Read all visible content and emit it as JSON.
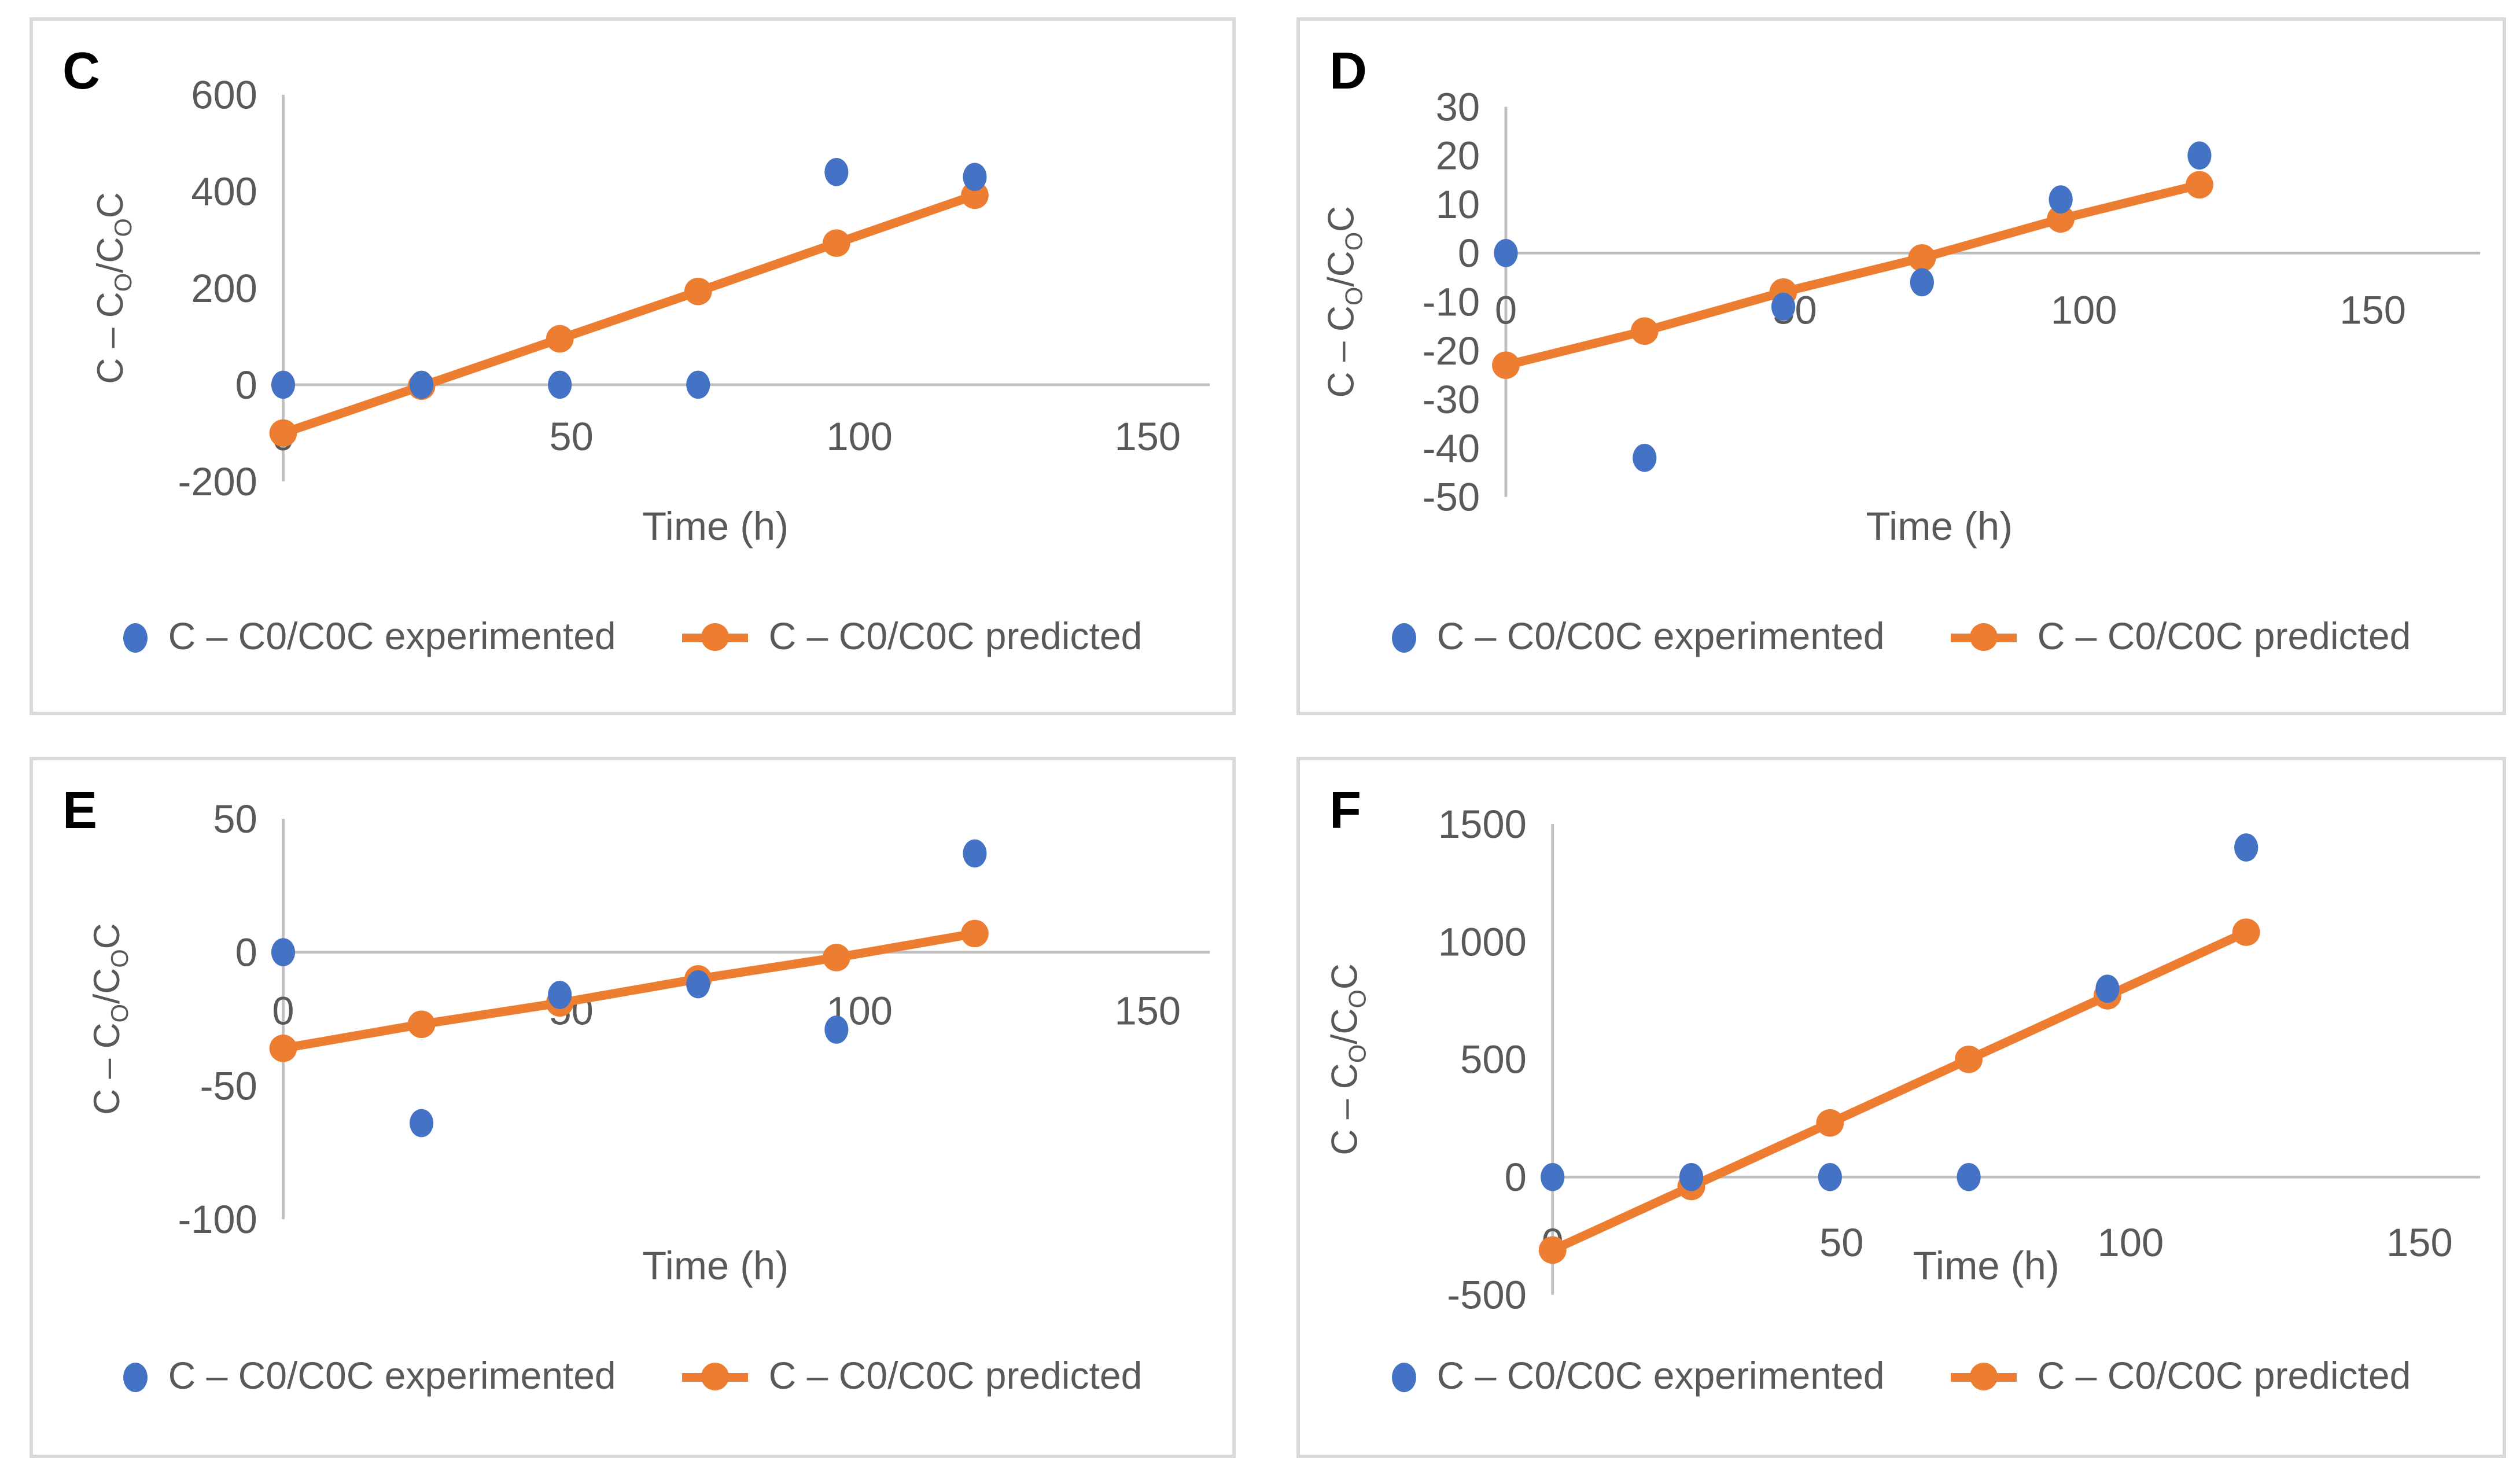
{
  "page": {
    "background": "#ffffff",
    "description": "Figure with four Excel-style scatter/line charts labeled C, D, E, F comparing experimented vs predicted values over time"
  },
  "colors": {
    "experimented": "#4472C4",
    "predicted": "#ED7D31",
    "axis_line": "#BFBFBF",
    "text": "#595959",
    "letter": "#000000",
    "panel_border": "#D9D9D9"
  },
  "legend": {
    "experimented_label": "C – C0/C0C experimented",
    "predicted_label": "C – C0/C0C predicted"
  },
  "axis_titles": {
    "x": "Time (h)",
    "y_plain": "C – CO/COC",
    "y_segments": [
      {
        "text": "C – C",
        "subscript": false
      },
      {
        "text": "O",
        "subscript": true
      },
      {
        "text": "/C",
        "subscript": false
      },
      {
        "text": "O",
        "subscript": true
      },
      {
        "text": "C",
        "subscript": false
      }
    ]
  },
  "chart_data": [
    {
      "id": "C",
      "letter": "C",
      "type": "scatter",
      "title": "",
      "xlabel": "Time (h)",
      "ylabel": "C – CO/COC",
      "x_ticks": [
        0,
        50,
        100,
        150
      ],
      "xlim": [
        0,
        157
      ],
      "y_ticks": [
        600,
        400,
        200,
        0,
        -200
      ],
      "ylim": [
        -200,
        600
      ],
      "grid": "zero-line-only",
      "legend_position": "bottom",
      "x": [
        0,
        24,
        48,
        72,
        96,
        120
      ],
      "series": [
        {
          "name": "C – C0/C0C experimented",
          "style": "markers",
          "values": [
            0,
            0,
            0,
            0,
            440,
            430
          ]
        },
        {
          "name": "C – C0/C0C predicted",
          "style": "line+markers",
          "values": [
            -100,
            -3,
            95,
            193,
            293,
            392
          ]
        }
      ]
    },
    {
      "id": "D",
      "letter": "D",
      "type": "scatter",
      "title": "",
      "xlabel": "Time (h)",
      "ylabel": "C – CO/COC",
      "x_ticks": [
        0,
        50,
        100,
        150
      ],
      "xlim": [
        0,
        157
      ],
      "y_ticks": [
        30,
        20,
        10,
        0,
        -10,
        -20,
        -30,
        -40,
        -50
      ],
      "ylim": [
        -50,
        30
      ],
      "grid": "zero-line-only",
      "legend_position": "bottom",
      "x": [
        0,
        24,
        48,
        72,
        96,
        120
      ],
      "series": [
        {
          "name": "C – C0/C0C experimented",
          "style": "markers",
          "values": [
            0,
            -42,
            -11,
            -6,
            11,
            20
          ]
        },
        {
          "name": "C – C0/C0C predicted",
          "style": "line+markers",
          "values": [
            -23,
            -16,
            -8,
            -1,
            7,
            14
          ]
        }
      ]
    },
    {
      "id": "E",
      "letter": "E",
      "type": "scatter",
      "title": "",
      "xlabel": "Time (h)",
      "ylabel": "C – CO/COC",
      "x_ticks": [
        0,
        50,
        100,
        150
      ],
      "xlim": [
        0,
        157
      ],
      "y_ticks": [
        50,
        0,
        -50,
        -100
      ],
      "ylim": [
        -100,
        50
      ],
      "grid": "zero-line-only",
      "legend_position": "bottom",
      "x": [
        0,
        24,
        48,
        72,
        96,
        120
      ],
      "series": [
        {
          "name": "C – C0/C0C experimented",
          "style": "markers",
          "values": [
            0,
            -64,
            -16,
            -12,
            -29,
            37
          ]
        },
        {
          "name": "C – C0/C0C predicted",
          "style": "line+markers",
          "values": [
            -36,
            -27,
            -19,
            -10,
            -2,
            7
          ]
        }
      ]
    },
    {
      "id": "F",
      "letter": "F",
      "type": "scatter",
      "title": "",
      "xlabel": "Time (h)",
      "ylabel": "C – CO/COC",
      "x_ticks": [
        0,
        50,
        100,
        150
      ],
      "xlim": [
        0,
        157
      ],
      "y_ticks": [
        1500,
        1000,
        500,
        0,
        -500
      ],
      "ylim": [
        -500,
        1500
      ],
      "grid": "zero-line-only",
      "legend_position": "bottom",
      "x": [
        0,
        24,
        48,
        72,
        96,
        120
      ],
      "series": [
        {
          "name": "C – C0/C0C experimented",
          "style": "markers",
          "values": [
            0,
            0,
            0,
            0,
            800,
            1400
          ]
        },
        {
          "name": "C – C0/C0C predicted",
          "style": "line+markers",
          "values": [
            -310,
            -40,
            230,
            500,
            770,
            1040
          ]
        }
      ]
    }
  ]
}
